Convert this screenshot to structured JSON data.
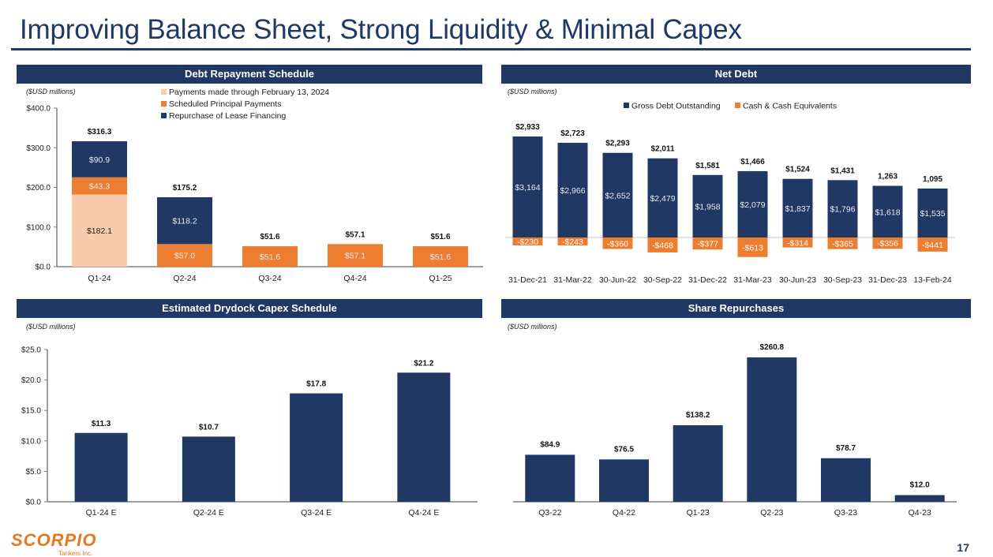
{
  "page": {
    "title": "Improving Balance Sheet, Strong Liquidity & Minimal Capex",
    "page_number": "17",
    "logo": {
      "name": "SCORPIO",
      "sub": "Tankers Inc."
    }
  },
  "colors": {
    "navy": "#203864",
    "orange": "#ed7d31",
    "peach": "#f8cbad",
    "header_bg": "#203864"
  },
  "chart_data": [
    {
      "id": "debt",
      "type": "bar",
      "stacked": true,
      "title": "Debt Repayment Schedule",
      "units": "($USD millions)",
      "categories": [
        "Q1-24",
        "Q2-24",
        "Q3-24",
        "Q4-24",
        "Q1-25"
      ],
      "series": [
        {
          "name": "Payments made through February 13, 2024",
          "color": "#f8cbad",
          "values": [
            182.1,
            0,
            0,
            0,
            0
          ],
          "labels": [
            "$182.1",
            "",
            "",
            "",
            ""
          ]
        },
        {
          "name": "Scheduled Principal Payments",
          "color": "#ed7d31",
          "values": [
            43.3,
            57.0,
            51.6,
            57.1,
            51.6
          ],
          "labels": [
            "$43.3",
            "$57.0",
            "$51.6",
            "$57.1",
            "$51.6"
          ]
        },
        {
          "name": "Repurchase of Lease Financing",
          "color": "#203864",
          "values": [
            90.9,
            118.2,
            0,
            0,
            0
          ],
          "labels": [
            "$90.9",
            "$118.2",
            "",
            "",
            ""
          ]
        }
      ],
      "totals": [
        "$316.3",
        "$175.2",
        "$51.6",
        "$57.1",
        "$51.6"
      ],
      "ylim": [
        0,
        400
      ],
      "yticks": [
        0,
        100,
        200,
        300,
        400
      ],
      "ytick_labels": [
        "$0.0",
        "$100.0",
        "$200.0",
        "$300.0",
        "$400.0"
      ],
      "legend": "top-right",
      "grid": false
    },
    {
      "id": "netdebt",
      "type": "bar",
      "title": "Net Debt",
      "units": "($USD millions)",
      "categories": [
        "31-Dec-21",
        "31-Mar-22",
        "30-Jun-22",
        "30-Sep-22",
        "31-Dec-22",
        "31-Mar-23",
        "30-Jun-23",
        "30-Sep-23",
        "31-Dec-23",
        "13-Feb-24"
      ],
      "series": [
        {
          "name": "Gross Debt Outstanding",
          "color": "#203864",
          "values": [
            3164,
            2966,
            2652,
            2479,
            1958,
            2079,
            1837,
            1796,
            1618,
            1535
          ],
          "labels": [
            "$3,164",
            "$2,966",
            "$2,652",
            "$2,479",
            "$1,958",
            "$2,079",
            "$1,837",
            "$1,796",
            "$1,618",
            "$1,535"
          ]
        },
        {
          "name": "Cash & Cash Equivalents",
          "color": "#ed7d31",
          "values": [
            -230,
            -243,
            -360,
            -468,
            -377,
            -613,
            -314,
            -365,
            -356,
            -441
          ],
          "labels": [
            "-$230",
            "-$243",
            "-$360",
            "-$468",
            "-$377",
            "-$613",
            "-$314",
            "-$365",
            "-$356",
            "-$441"
          ]
        }
      ],
      "net_debt_labels": [
        "$2,933",
        "$2,723",
        "$2,293",
        "$2,011",
        "$1,581",
        "$1,466",
        "$1,524",
        "$1,431",
        "1,263",
        "1,095"
      ],
      "net_debt": [
        2933,
        2723,
        2293,
        2011,
        1581,
        1466,
        1524,
        1431,
        1263,
        1095
      ],
      "legend": "top-center",
      "grid": false
    },
    {
      "id": "drydock",
      "type": "bar",
      "title": "Estimated Drydock Capex Schedule",
      "units": "($USD millions)",
      "categories": [
        "Q1-24 E",
        "Q2-24 E",
        "Q3-24 E",
        "Q4-24 E"
      ],
      "values": [
        11.3,
        10.7,
        17.8,
        21.2
      ],
      "labels": [
        "$11.3",
        "$10.7",
        "$17.8",
        "$21.2"
      ],
      "color": "#203864",
      "ylim": [
        0,
        25
      ],
      "yticks": [
        0,
        5,
        10,
        15,
        20,
        25
      ],
      "ytick_labels": [
        "$0.0",
        "$5.0",
        "$10.0",
        "$15.0",
        "$20.0",
        "$25.0"
      ],
      "grid": false
    },
    {
      "id": "buyback",
      "type": "bar",
      "title": "Share Repurchases",
      "units": "($USD millions)",
      "categories": [
        "Q3-22",
        "Q4-22",
        "Q1-23",
        "Q2-23",
        "Q3-23",
        "Q4-23"
      ],
      "values": [
        84.9,
        76.5,
        138.2,
        260.8,
        78.7,
        12.0
      ],
      "labels": [
        "$84.9",
        "$76.5",
        "$138.2",
        "$260.8",
        "$78.7",
        "$12.0"
      ],
      "color": "#203864",
      "grid": false
    }
  ]
}
